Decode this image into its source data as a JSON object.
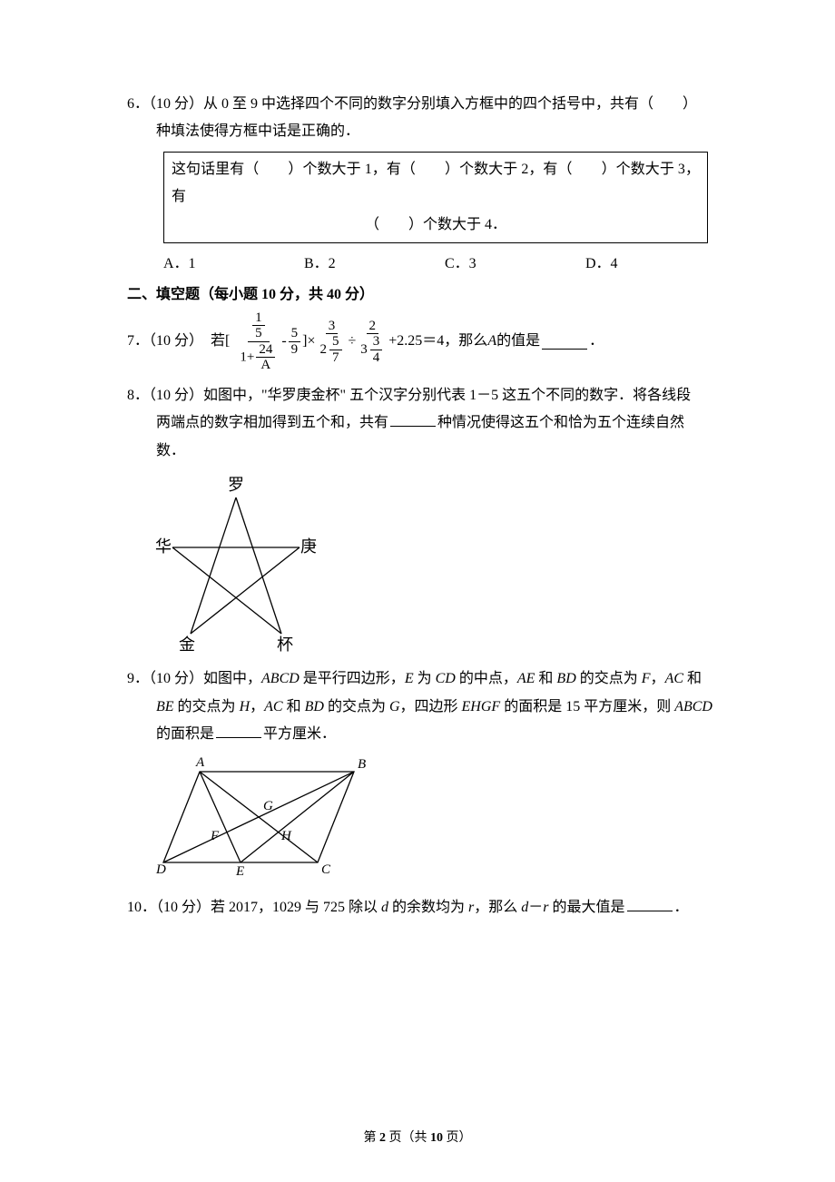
{
  "q6": {
    "prefix": "6．（10 分）从 0 至 9 中选择四个不同的数字分别填入方框中的四个括号中，共有（　　）",
    "line2": "种填法使得方框中话是正确的．",
    "box_line1": "这句话里有（　　）个数大于 1，有（　　）个数大于 2，有（　　）个数大于 3，有",
    "box_line2": "（　　）个数大于 4．",
    "optA": "A．1",
    "optB": "B．2",
    "optC": "C．3",
    "optD": "D．4"
  },
  "section2": "二、填空题（每小题 10 分，共 40 分）",
  "q7": {
    "prefix": "7．（10 分）　若[",
    "after_formula_1": "+2.25＝4，那么 ",
    "var": "A",
    "after_formula_2": " 的值是",
    "period": "．",
    "frac1_num": "1",
    "frac1_den": "5",
    "frac1_outer_den_1": "1+",
    "frac1_outer_den_num": "24",
    "frac1_outer_den_den": "A",
    "minus": " - ",
    "frac2_num": "5",
    "frac2_den": "9",
    "bracket_close_mul": "]×",
    "frac3_num": "3",
    "mix1_whole": "2",
    "mix1_num": "5",
    "mix1_den": "7",
    "div": "÷",
    "frac4_num": "2",
    "mix2_whole": "3",
    "mix2_num": "3",
    "mix2_den": "4"
  },
  "q8": {
    "line1": "8．（10 分）如图中，\"华罗庚金杯\" 五个汉字分别代表 1－5 这五个不同的数字．将各线段",
    "line2_a": "两端点的数字相加得到五个和，共有",
    "line2_b": "种情况使得这五个和恰为五个连续自然",
    "line3": "数．",
    "labels": {
      "top": "罗",
      "left": "华",
      "right": "庚",
      "bl": "金",
      "br": "杯"
    },
    "colors": {
      "stroke": "#000000",
      "text": "#000000"
    }
  },
  "q9": {
    "line1": "9．（10 分）如图中，<em class=\"ital\">ABCD</em> 是平行四边形，<em class=\"ital\">E</em> 为 <em class=\"ital\">CD</em> 的中点，<em class=\"ital\">AE</em> 和 <em class=\"ital\">BD</em> 的交点为 <em class=\"ital\">F</em>，<em class=\"ital\">AC</em> 和",
    "line2": "<em class=\"ital\">BE</em> 的交点为 <em class=\"ital\">H</em>，<em class=\"ital\">AC</em> 和 <em class=\"ital\">BD</em> 的交点为 <em class=\"ital\">G</em>，四边形 <em class=\"ital\">EHGF</em> 的面积是 15 平方厘米，则 <em class=\"ital\">ABCD</em>",
    "line3_a": "的面积是",
    "line3_b": "平方厘米．",
    "labels": {
      "A": "A",
      "B": "B",
      "C": "C",
      "D": "D",
      "E": "E",
      "F": "F",
      "G": "G",
      "H": "H"
    },
    "colors": {
      "stroke": "#000000",
      "text": "#000000"
    }
  },
  "q10": {
    "text_a": "10．（10 分）若 2017，1029 与 725 除以 ",
    "var_d": "d",
    "text_b": " 的余数均为 ",
    "var_r": "r",
    "text_c": "，那么 ",
    "text_d": "－",
    "text_e": " 的最大值是",
    "period": "．"
  },
  "footer": {
    "a": "第 ",
    "page": "2",
    "b": " 页（共 ",
    "total": "10",
    "c": " 页）"
  }
}
